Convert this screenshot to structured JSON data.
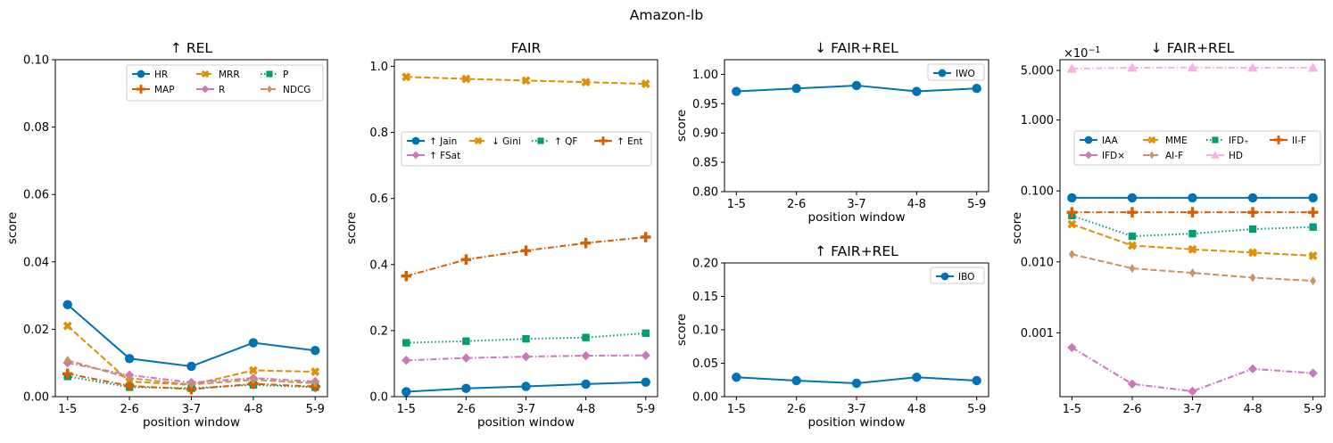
{
  "figure": {
    "suptitle": "Amazon-lb"
  },
  "colors": {
    "blue": "#0173b2",
    "orange": "#de8f05",
    "green": "#029e73",
    "vermilion": "#d55e00",
    "pink": "#cc78bc",
    "tan": "#ca9161",
    "lightpink": "#fbafe4"
  },
  "chart_data": [
    {
      "id": "rel",
      "type": "line",
      "title": "↑ REL",
      "xlabel": "position window",
      "ylabel": "score",
      "categories": [
        "1-5",
        "2-6",
        "3-7",
        "4-8",
        "5-9"
      ],
      "ylim": [
        0,
        0.1
      ],
      "yticks": [
        0,
        0.02,
        0.04,
        0.06,
        0.08,
        0.1
      ],
      "ytick_labels": [
        "0.00",
        "0.02",
        "0.04",
        "0.06",
        "0.08",
        "0.10"
      ],
      "legend": "top-right",
      "series": [
        {
          "name": "HR",
          "color": "#0173b2",
          "marker": "circle",
          "dash": "solid",
          "values": [
            0.0273,
            0.0113,
            0.009,
            0.016,
            0.0137
          ]
        },
        {
          "name": "MRR",
          "color": "#de8f05",
          "marker": "x",
          "dash": "dashed",
          "values": [
            0.021,
            0.0045,
            0.0035,
            0.0078,
            0.0074
          ]
        },
        {
          "name": "P",
          "color": "#029e73",
          "marker": "square",
          "dash": "dotted",
          "values": [
            0.006,
            0.0028,
            0.0025,
            0.0035,
            0.0028
          ]
        },
        {
          "name": "MAP",
          "color": "#d55e00",
          "marker": "plus",
          "dash": "dashdot",
          "values": [
            0.0068,
            0.0032,
            0.0022,
            0.0038,
            0.003
          ]
        },
        {
          "name": "R",
          "color": "#cc78bc",
          "marker": "diamond",
          "dash": "dashdot",
          "values": [
            0.01,
            0.0064,
            0.0042,
            0.0055,
            0.0045
          ]
        },
        {
          "name": "NDCG",
          "color": "#ca9161",
          "marker": "thin_diamond",
          "dash": "dashed",
          "values": [
            0.0108,
            0.0055,
            0.0036,
            0.005,
            0.004
          ]
        }
      ]
    },
    {
      "id": "fair",
      "type": "line",
      "title": "FAIR",
      "xlabel": "position window",
      "ylabel": "score",
      "categories": [
        "1-5",
        "2-6",
        "3-7",
        "4-8",
        "5-9"
      ],
      "ylim": [
        0,
        1.02
      ],
      "yticks": [
        0,
        0.2,
        0.4,
        0.6,
        0.8,
        1.0
      ],
      "ytick_labels": [
        "0.0",
        "0.2",
        "0.4",
        "0.6",
        "0.8",
        "1.0"
      ],
      "legend": "center",
      "series": [
        {
          "name": "↑ Jain",
          "color": "#0173b2",
          "marker": "circle",
          "dash": "solid",
          "values": [
            0.015,
            0.025,
            0.031,
            0.038,
            0.044
          ]
        },
        {
          "name": "↓ Gini",
          "color": "#de8f05",
          "marker": "x",
          "dash": "dashed",
          "values": [
            0.968,
            0.962,
            0.957,
            0.952,
            0.947
          ]
        },
        {
          "name": "↑ QF",
          "color": "#029e73",
          "marker": "square",
          "dash": "dotted",
          "values": [
            0.163,
            0.168,
            0.175,
            0.179,
            0.192
          ]
        },
        {
          "name": "↑ Ent",
          "color": "#d55e00",
          "marker": "plus",
          "dash": "dashdot",
          "values": [
            0.365,
            0.415,
            0.442,
            0.465,
            0.483
          ]
        },
        {
          "name": "↑ FSat",
          "color": "#cc78bc",
          "marker": "diamond",
          "dash": "dashdot",
          "values": [
            0.11,
            0.117,
            0.121,
            0.124,
            0.125
          ]
        }
      ]
    },
    {
      "id": "iwo",
      "type": "line",
      "title": "↓ FAIR+REL",
      "xlabel": "position window",
      "ylabel": "score",
      "categories": [
        "1-5",
        "2-6",
        "3-7",
        "4-8",
        "5-9"
      ],
      "ylim": [
        0.8,
        1.025
      ],
      "yticks": [
        0.8,
        0.85,
        0.9,
        0.95,
        1.0
      ],
      "ytick_labels": [
        "0.80",
        "0.85",
        "0.90",
        "0.95",
        "1.00"
      ],
      "legend": "top-right",
      "series": [
        {
          "name": "IWO",
          "color": "#0173b2",
          "marker": "circle",
          "dash": "solid",
          "values": [
            0.971,
            0.976,
            0.981,
            0.971,
            0.976
          ]
        }
      ]
    },
    {
      "id": "ibo",
      "type": "line",
      "title": "↑ FAIR+REL",
      "xlabel": "position window",
      "ylabel": "score",
      "categories": [
        "1-5",
        "2-6",
        "3-7",
        "4-8",
        "5-9"
      ],
      "ylim": [
        0,
        0.2
      ],
      "yticks": [
        0,
        0.05,
        0.1,
        0.15,
        0.2
      ],
      "ytick_labels": [
        "0.00",
        "0.05",
        "0.10",
        "0.15",
        "0.20"
      ],
      "legend": "top-right",
      "series": [
        {
          "name": "IBO",
          "color": "#0173b2",
          "marker": "circle",
          "dash": "solid",
          "values": [
            0.029,
            0.024,
            0.02,
            0.029,
            0.024
          ]
        }
      ]
    },
    {
      "id": "log",
      "type": "line",
      "title": "↓ FAIR+REL",
      "xlabel": "",
      "ylabel": "score",
      "yscale": "log",
      "scale_label": "×10",
      "scale_exp": "−1",
      "categories": [
        "1-5",
        "2-6",
        "3-7",
        "4-8",
        "5-9"
      ],
      "ylim_log10": [
        -3.9,
        0.85
      ],
      "yticks": [
        0.001,
        0.01,
        0.1,
        1,
        5
      ],
      "ytick_labels": [
        "0.001",
        "0.010",
        "0.100",
        "1.000",
        "5.000"
      ],
      "legend": "center",
      "series": [
        {
          "name": "IAA",
          "color": "#0173b2",
          "marker": "circle",
          "dash": "solid",
          "values": [
            0.08,
            0.08,
            0.08,
            0.08,
            0.08
          ]
        },
        {
          "name": "MME",
          "color": "#de8f05",
          "marker": "x",
          "dash": "dashed",
          "values": [
            0.034,
            0.017,
            0.015,
            0.0135,
            0.0122
          ]
        },
        {
          "name": "IFD₊",
          "color": "#029e73",
          "marker": "square",
          "dash": "dotted",
          "values": [
            0.045,
            0.023,
            0.025,
            0.029,
            0.031
          ]
        },
        {
          "name": "II-F",
          "color": "#d55e00",
          "marker": "plus",
          "dash": "dashdot",
          "values": [
            0.05,
            0.05,
            0.05,
            0.05,
            0.05
          ]
        },
        {
          "name": "IFD×",
          "color": "#cc78bc",
          "marker": "diamond",
          "dash": "dashdot",
          "values": [
            0.00062,
            0.00019,
            0.00015,
            0.00031,
            0.00027
          ]
        },
        {
          "name": "AI-F",
          "color": "#ca9161",
          "marker": "thin_diamond",
          "dash": "dashed",
          "values": [
            0.0128,
            0.0081,
            0.007,
            0.006,
            0.0054
          ]
        },
        {
          "name": "HD",
          "color": "#fbafe4",
          "marker": "triangle",
          "dash": "dashdot",
          "values": [
            5.3,
            5.45,
            5.5,
            5.45,
            5.45
          ]
        }
      ]
    }
  ]
}
